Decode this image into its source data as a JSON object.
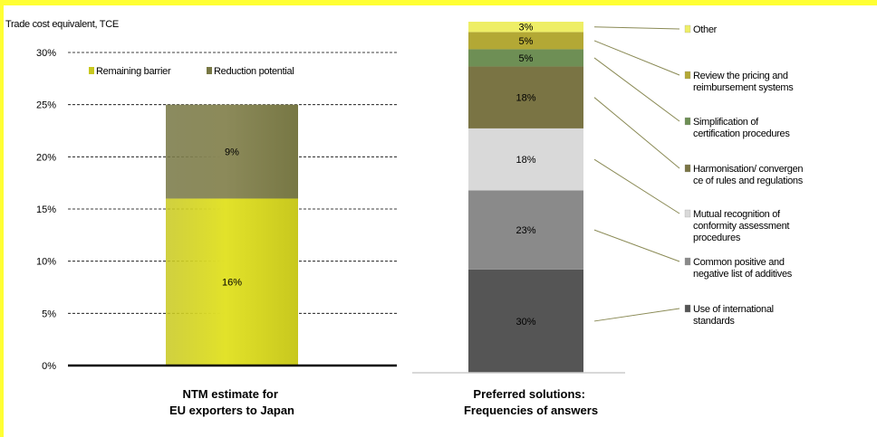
{
  "colors": {
    "highlight": "#ffff33",
    "remaining": "#c8c81e",
    "reduction": "#777744",
    "leader": "#8a8a55"
  },
  "top_caption": "",
  "chart_data": [
    {
      "type": "bar",
      "stacked": true,
      "ylabel": "Trade cost equivalent, TCE",
      "ylim": [
        0,
        30
      ],
      "yticks": [
        0,
        5,
        10,
        15,
        20,
        25,
        30
      ],
      "ytick_labels": [
        "0%",
        "5%",
        "10%",
        "15%",
        "20%",
        "25%",
        "30%"
      ],
      "grid": true,
      "legend_position": "top",
      "series": [
        {
          "name": "Remaining barrier",
          "values": [
            16
          ],
          "label": "16%",
          "color": "#c8c81e"
        },
        {
          "name": "Reduction potential",
          "values": [
            9
          ],
          "label": "9%",
          "color": "#777744"
        }
      ],
      "xlabel_lines": [
        "NTM estimate for",
        "EU exporters to Japan"
      ]
    },
    {
      "type": "bar",
      "stacked": true,
      "ylim": [
        0,
        102
      ],
      "grid": false,
      "legend_position": "right",
      "segments": [
        {
          "name_lines": [
            "Use of international",
            "standards"
          ],
          "value": 30,
          "label": "30%",
          "color": "#555555"
        },
        {
          "name_lines": [
            "Common positive and",
            "negative list of additives"
          ],
          "value": 23,
          "label": "23%",
          "color": "#8a8a8a"
        },
        {
          "name_lines": [
            "Mutual recognition of",
            "conformity assessment",
            "procedures"
          ],
          "value": 18,
          "label": "18%",
          "color": "#d9d9d9"
        },
        {
          "name_lines": [
            "Harmonisation/ convergen",
            "ce of rules and regulations"
          ],
          "value": 18,
          "label": "18%",
          "color": "#7a7444"
        },
        {
          "name_lines": [
            "Simplification of",
            "certification procedures"
          ],
          "value": 5,
          "label": "5%",
          "color": "#6e8f55"
        },
        {
          "name_lines": [
            "Review the pricing and",
            "reimbursement systems"
          ],
          "value": 5,
          "label": "5%",
          "color": "#b3a835"
        },
        {
          "name_lines": [
            "Other"
          ],
          "value": 3,
          "label": "3%",
          "color": "#eeee66"
        }
      ],
      "xlabel_lines": [
        "Preferred solutions:",
        "Frequencies of answers"
      ]
    }
  ]
}
